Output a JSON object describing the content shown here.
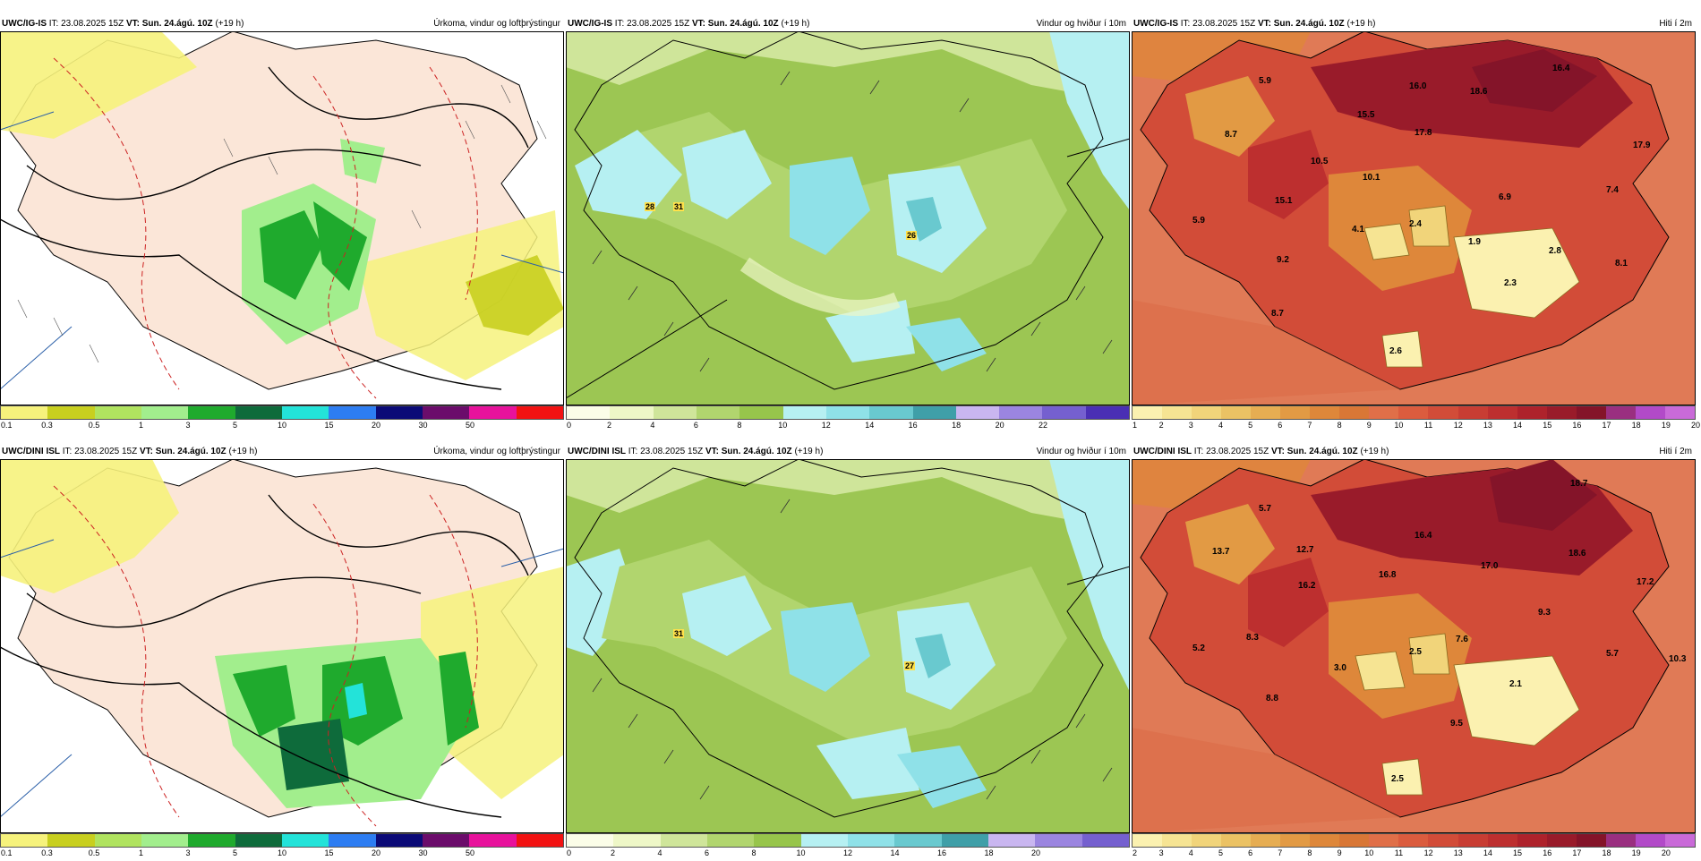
{
  "panels": [
    {
      "id": "p1",
      "model": "UWC/IG-IS",
      "it_label": "IT:",
      "it_value": "23.08.2025 15Z",
      "vt_label": "VT:",
      "vt_value": "Sun. 24.ágú. 10Z",
      "lead": "(+19 h)",
      "product": "Úrkoma, vindur og loftþrýstingur",
      "colorbar_colors": [
        "#f6f27c",
        "#c8cf1f",
        "#b0e35f",
        "#a2ee8d",
        "#1faa2d",
        "#0e6b3b",
        "#23e3d9",
        "#2d7df2",
        "#0b0a77",
        "#6b0c6b",
        "#e8129c",
        "#f21212"
      ],
      "ticks": [
        "0.1",
        "0.3",
        "0.5",
        "1",
        "3",
        "5",
        "10",
        "15",
        "20",
        "30",
        "50"
      ],
      "value_labels": []
    },
    {
      "id": "p2",
      "model": "UWC/IG-IS",
      "it_label": "IT:",
      "it_value": "23.08.2025 15Z",
      "vt_label": "VT:",
      "vt_value": "Sun. 24.ágú. 10Z",
      "lead": "(+19 h)",
      "product": "Vindur og hviður í 10m",
      "colorbar_colors": [
        "#fbfde8",
        "#eef7c7",
        "#cfe59a",
        "#b1d56e",
        "#97c54b",
        "#b6f0f2",
        "#8fe1e8",
        "#69c9cf",
        "#3f9fa8",
        "#c9b6f0",
        "#9b85e0",
        "#7560cf",
        "#4a2fb4"
      ],
      "ticks": [
        "0",
        "2",
        "4",
        "6",
        "8",
        "10",
        "12",
        "14",
        "16",
        "18",
        "20",
        "22"
      ],
      "value_labels": [
        "28",
        "31",
        "26"
      ]
    },
    {
      "id": "p3",
      "model": "UWC/IG-IS",
      "it_label": "IT:",
      "it_value": "23.08.2025 15Z",
      "vt_label": "VT:",
      "vt_value": "Sun. 24.ágú. 10Z",
      "lead": "(+19 h)",
      "product": "Hiti í 2m",
      "colorbar_colors": [
        "#fbf1b0",
        "#f6e493",
        "#f1d47a",
        "#ebc264",
        "#e6ad52",
        "#e29a44",
        "#de873a",
        "#d97736",
        "#e06f48",
        "#db5c3e",
        "#d24c38",
        "#c83d33",
        "#bd2f2f",
        "#ae222b",
        "#991b2a",
        "#841429",
        "#9a2f80",
        "#b24ac8",
        "#c96ad8"
      ],
      "ticks": [
        "1",
        "2",
        "3",
        "4",
        "5",
        "6",
        "7",
        "8",
        "9",
        "10",
        "11",
        "12",
        "13",
        "14",
        "15",
        "16",
        "17",
        "18",
        "19",
        "20"
      ],
      "value_labels": [
        "5.9",
        "16.4",
        "16.0",
        "18.6",
        "8.7",
        "15.5",
        "17.8",
        "17.9",
        "10.5",
        "10.1",
        "7.4",
        "6.9",
        "15.1",
        "5.9",
        "4.1",
        "2.4",
        "1.9",
        "2.8",
        "9.2",
        "8.1",
        "2.3",
        "8.7",
        "2.6"
      ]
    },
    {
      "id": "p4",
      "model": "UWC/DINI ISL",
      "it_label": "IT:",
      "it_value": "23.08.2025 15Z",
      "vt_label": "VT:",
      "vt_value": "Sun. 24.ágú. 10Z",
      "lead": "(+19 h)",
      "product": "Úrkoma, vindur og loftþrýstingur",
      "colorbar_colors": [
        "#f6f27c",
        "#c8cf1f",
        "#b0e35f",
        "#a2ee8d",
        "#1faa2d",
        "#0e6b3b",
        "#23e3d9",
        "#2d7df2",
        "#0b0a77",
        "#6b0c6b",
        "#e8129c",
        "#f21212"
      ],
      "ticks": [
        "0.1",
        "0.3",
        "0.5",
        "1",
        "3",
        "5",
        "10",
        "15",
        "20",
        "30",
        "50"
      ],
      "value_labels": []
    },
    {
      "id": "p5",
      "model": "UWC/DINI ISL",
      "it_label": "IT:",
      "it_value": "23.08.2025 15Z",
      "vt_label": "VT:",
      "vt_value": "Sun. 24.ágú. 10Z",
      "lead": "(+19 h)",
      "product": "Vindur og hviður í 10m",
      "colorbar_colors": [
        "#fbfde8",
        "#eef7c7",
        "#cfe59a",
        "#b1d56e",
        "#97c54b",
        "#b6f0f2",
        "#8fe1e8",
        "#69c9cf",
        "#3f9fa8",
        "#c9b6f0",
        "#9b85e0",
        "#7560cf"
      ],
      "ticks": [
        "0",
        "2",
        "4",
        "6",
        "8",
        "10",
        "12",
        "14",
        "16",
        "18",
        "20"
      ],
      "value_labels": [
        "31",
        "27"
      ]
    },
    {
      "id": "p6",
      "model": "UWC/DINI ISL",
      "it_label": "IT:",
      "it_value": "23.08.2025 15Z",
      "vt_label": "VT:",
      "vt_value": "Sun. 24.ágú. 10Z",
      "lead": "(+19 h)",
      "product": "Hiti í 2m",
      "colorbar_colors": [
        "#fbf1b0",
        "#f6e493",
        "#f1d47a",
        "#ebc264",
        "#e6ad52",
        "#e29a44",
        "#de873a",
        "#d97736",
        "#e06f48",
        "#db5c3e",
        "#d24c38",
        "#c83d33",
        "#bd2f2f",
        "#ae222b",
        "#991b2a",
        "#841429",
        "#9a2f80",
        "#b24ac8",
        "#c96ad8"
      ],
      "ticks": [
        "2",
        "3",
        "4",
        "5",
        "6",
        "7",
        "8",
        "9",
        "10",
        "11",
        "12",
        "13",
        "14",
        "15",
        "16",
        "17",
        "18",
        "19",
        "20"
      ],
      "value_labels": [
        "18.7",
        "5.7",
        "13.7",
        "12.7",
        "16.4",
        "18.6",
        "17.0",
        "16.2",
        "16.8",
        "17.2",
        "9.3",
        "8.3",
        "7.6",
        "5.7",
        "5.2",
        "3.0",
        "2.5",
        "2.1",
        "10.3",
        "8.8",
        "9.5",
        "2.5"
      ]
    }
  ]
}
